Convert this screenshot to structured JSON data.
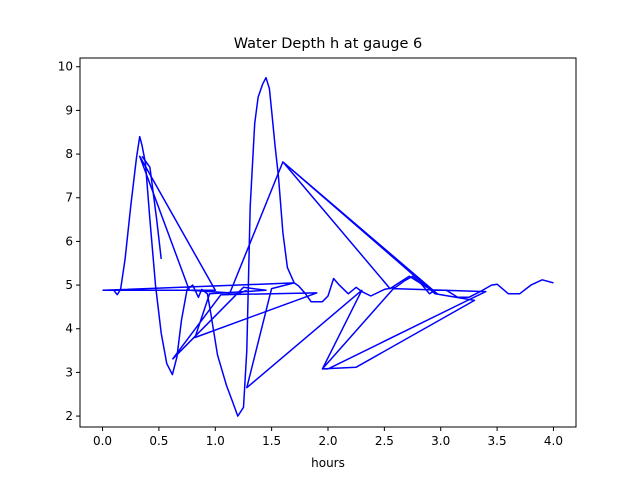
{
  "chart_data": {
    "type": "line",
    "title": "Water Depth h at gauge 6",
    "xlabel": "hours",
    "ylabel": "",
    "xlim": [
      -0.2,
      4.2
    ],
    "ylim": [
      1.75,
      10.2
    ],
    "xticks": [
      0.0,
      0.5,
      1.0,
      1.5,
      2.0,
      2.5,
      3.0,
      3.5,
      4.0
    ],
    "xtick_labels": [
      "0.0",
      "0.5",
      "1.0",
      "1.5",
      "2.0",
      "2.5",
      "3.0",
      "3.5",
      "4.0"
    ],
    "yticks": [
      2,
      3,
      4,
      5,
      6,
      7,
      8,
      9,
      10
    ],
    "ytick_labels": [
      "2",
      "3",
      "4",
      "5",
      "6",
      "7",
      "8",
      "9",
      "10"
    ],
    "grid": false,
    "legend": "none",
    "series": [
      {
        "color": "#0000ff",
        "x": [
          0.0,
          0.1,
          0.13,
          0.16,
          0.2,
          0.25,
          0.3,
          0.33,
          0.35,
          0.38,
          0.42,
          0.47,
          0.52,
          0.57,
          0.62,
          0.66,
          0.7,
          0.75,
          0.8,
          0.85,
          0.88,
          0.93,
          0.96,
          1.02,
          1.1,
          1.15,
          1.2,
          1.25,
          1.28,
          1.31,
          1.35,
          1.38,
          1.42,
          1.45,
          1.48,
          1.5,
          1.53,
          1.56,
          1.6,
          1.64,
          1.7,
          1.74,
          1.8,
          1.85,
          1.95,
          2.0,
          2.05,
          2.1,
          2.18,
          2.25,
          2.3,
          2.38,
          2.5,
          2.6,
          2.68,
          2.75,
          2.82,
          2.9,
          2.95,
          3.05,
          3.15,
          3.25,
          3.35,
          3.45,
          3.5,
          3.6,
          3.7,
          3.8,
          3.9,
          4.0
        ],
        "y": [
          4.88,
          4.88,
          4.78,
          4.9,
          5.6,
          6.8,
          7.9,
          8.4,
          8.2,
          7.8,
          6.5,
          5.0,
          3.9,
          3.2,
          2.95,
          3.35,
          4.2,
          4.9,
          5.0,
          4.72,
          4.9,
          4.8,
          4.35,
          3.4,
          2.7,
          2.35,
          2.0,
          2.2,
          3.5,
          6.8,
          8.7,
          9.3,
          9.6,
          9.75,
          9.5,
          9.0,
          8.2,
          7.5,
          6.2,
          5.4,
          5.05,
          4.98,
          4.8,
          4.62,
          4.62,
          4.75,
          5.15,
          5.0,
          4.8,
          4.95,
          4.85,
          4.75,
          4.9,
          4.95,
          5.1,
          5.2,
          5.05,
          4.8,
          4.88,
          4.88,
          4.72,
          4.72,
          4.85,
          5.0,
          5.02,
          4.8,
          4.8,
          5.0,
          5.12,
          5.05
        ]
      },
      {
        "color": "#0000ff",
        "x": [
          0.0,
          1.0,
          0.33,
          0.77,
          1.13,
          1.6,
          2.55,
          2.72,
          2.97,
          1.6,
          2.95,
          3.3,
          2.25,
          1.95,
          2.0,
          3.2,
          3.4,
          2.58,
          1.95,
          2.3,
          1.28,
          1.5,
          1.7,
          0.0
        ],
        "y": [
          4.88,
          4.88,
          7.95,
          4.88,
          4.82,
          7.82,
          4.92,
          5.2,
          4.8,
          7.82,
          4.8,
          4.65,
          3.12,
          3.08,
          3.08,
          4.6,
          4.85,
          4.92,
          3.08,
          4.88,
          2.65,
          4.92,
          5.05,
          4.88
        ]
      },
      {
        "color": "#0000ff",
        "x": [
          0.62,
          1.25,
          1.45,
          0.95,
          0.82,
          1.9,
          1.05,
          0.62
        ],
        "y": [
          3.3,
          4.95,
          4.88,
          4.8,
          3.8,
          4.82,
          4.78,
          3.3
        ]
      },
      {
        "color": "#0000ff",
        "x": [
          0.35,
          0.42,
          0.48,
          0.52
        ],
        "y": [
          7.95,
          7.7,
          6.5,
          5.6
        ]
      },
      {
        "color": "#0000ff",
        "x": [
          1.05,
          1.2,
          1.28
        ],
        "y": [
          4.78,
          4.8,
          4.88
        ]
      }
    ]
  }
}
